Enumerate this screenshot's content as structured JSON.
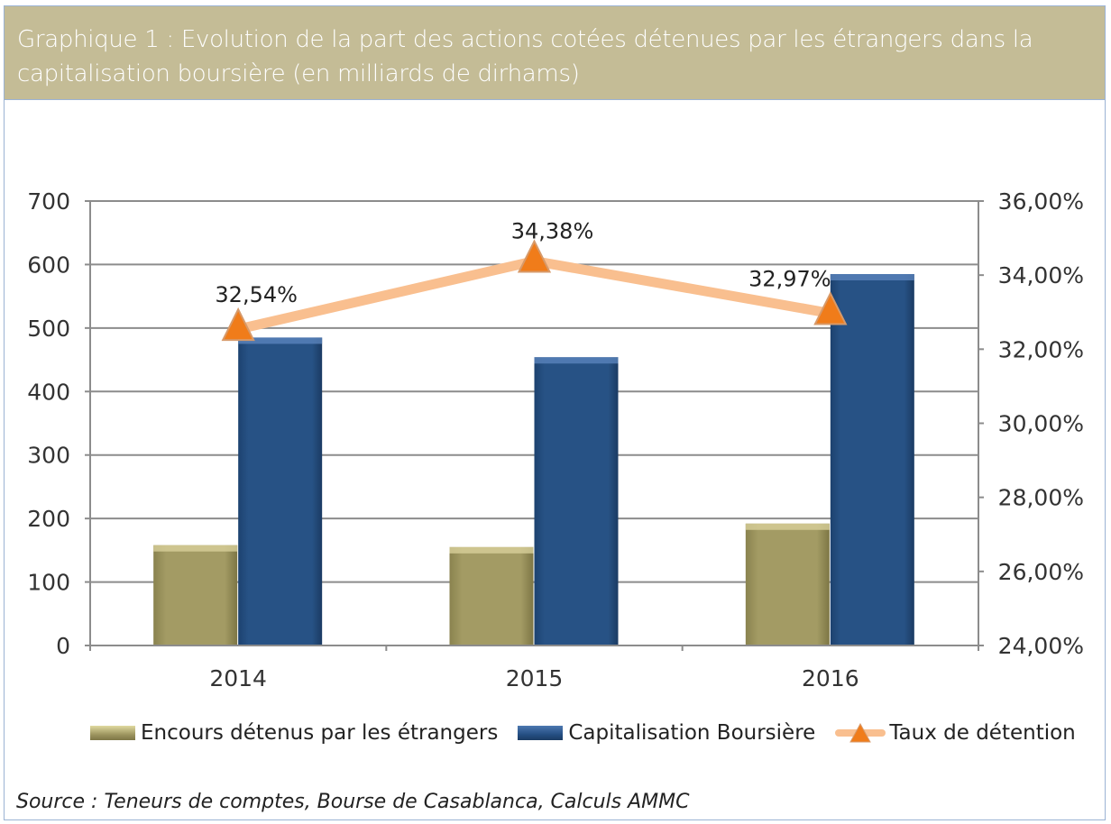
{
  "title": "Graphique 1 : Evolution de la part des actions cotées détenues par les étrangers dans la capitalisation boursière (en milliards de dirhams)",
  "source": "Source : Teneurs de comptes, Bourse de Casablanca, Calculs AMMC",
  "chart_data": {
    "type": "bar",
    "categories": [
      "2014",
      "2015",
      "2016"
    ],
    "series": [
      {
        "name": "Encours détenus par les étrangers",
        "type": "bar",
        "axis": "left",
        "color": "#9e9660",
        "values": [
          158,
          155,
          192
        ]
      },
      {
        "name": "Capitalisation Boursière",
        "type": "bar",
        "axis": "right-none",
        "color": "#254f84",
        "values": [
          485,
          454,
          585
        ]
      },
      {
        "name": "Taux de détention",
        "type": "line",
        "axis": "right",
        "color": "#f9bf8f",
        "marker_color": "#f07c1a",
        "values": [
          32.54,
          34.38,
          32.97
        ],
        "labels": [
          "32,54%",
          "34,38%",
          "32,97%"
        ]
      }
    ],
    "ylim": [
      0,
      700
    ],
    "yticks": [
      "0",
      "100",
      "200",
      "300",
      "400",
      "500",
      "600",
      "700"
    ],
    "y2lim": [
      24,
      36
    ],
    "y2ticks": [
      "24,00%",
      "26,00%",
      "28,00%",
      "30,00%",
      "32,00%",
      "34,00%",
      "36,00%"
    ],
    "grid": true,
    "legend": "bottom"
  }
}
